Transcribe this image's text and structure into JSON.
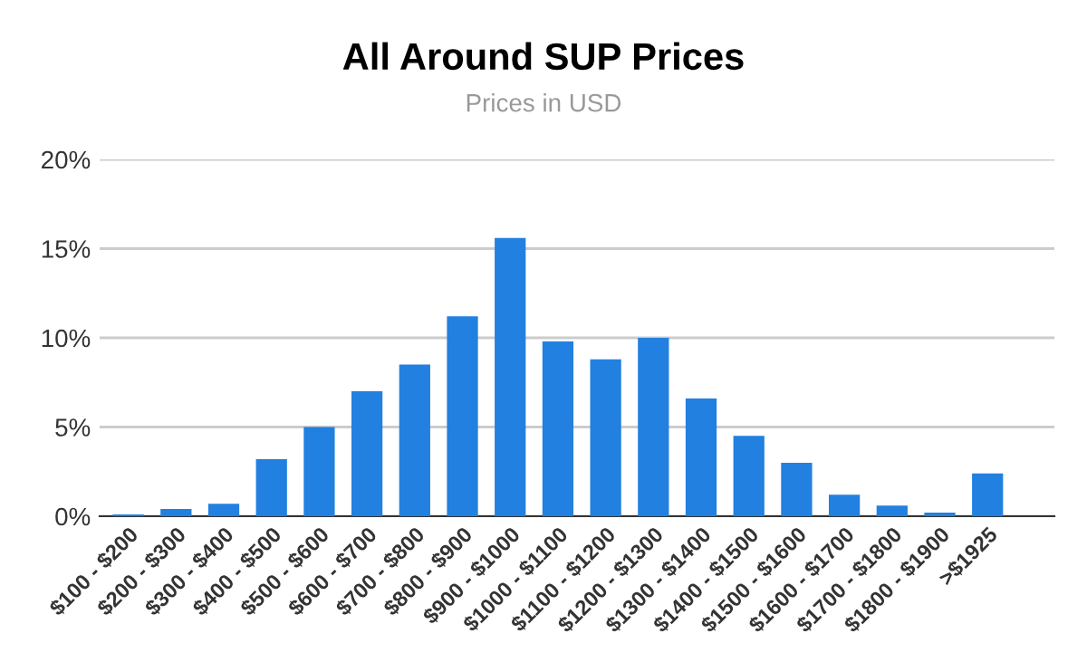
{
  "chart_data": {
    "type": "bar",
    "title": "All Around SUP Prices",
    "subtitle": "Prices in USD",
    "categories": [
      "$100 - $200",
      "$200 - $300",
      "$300 - $400",
      "$400 - $500",
      "$500 - $600",
      "$600 - $700",
      "$700 - $800",
      "$800 - $900",
      "$900 - $1000",
      "$1000 - $1100",
      "$1100 - $1200",
      "$1200 - $1300",
      "$1300 - $1400",
      "$1400 - $1500",
      "$1500 - $1600",
      "$1600 - $1700",
      "$1700 - $1800",
      "$1800 - $1900",
      ">$1925",
      null
    ],
    "values": [
      0.1,
      0.4,
      0.7,
      3.2,
      5.0,
      7.0,
      8.5,
      11.2,
      15.6,
      9.8,
      8.8,
      10.0,
      6.6,
      4.5,
      3.0,
      1.2,
      0.6,
      0.2,
      2.4,
      null
    ],
    "color": "#2280e0",
    "ylim": [
      0,
      20
    ],
    "yticks": [
      {
        "value": 0,
        "label": "0%"
      },
      {
        "value": 5,
        "label": "5%"
      },
      {
        "value": 10,
        "label": "10%"
      },
      {
        "value": 15,
        "label": "15%"
      },
      {
        "value": 20,
        "label": "20%"
      }
    ],
    "grid": "y",
    "legend": false
  }
}
